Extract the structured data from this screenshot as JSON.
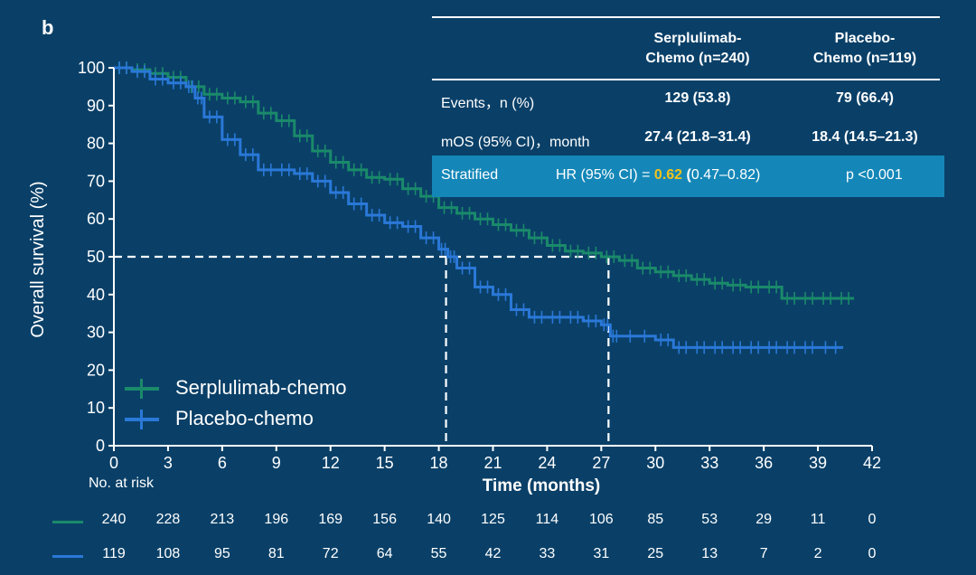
{
  "panel_label": "b",
  "table": {
    "col1_header": "Serplulimab-\nChemo (n=240)",
    "col2_header": "Placebo-\nChemo (n=119)",
    "rows": [
      {
        "label": "Events，n (%)",
        "v1": "129 (53.8)",
        "v2": "79 (66.4)"
      },
      {
        "label": "mOS (95% CI)，month",
        "v1": "27.4 (21.8–31.4)",
        "v2": "18.4 (14.5–21.3)"
      }
    ],
    "stratified": {
      "label": "Stratified",
      "hr_prefix": "HR (95% CI) = ",
      "hr_value": "0.62",
      "hr_open": "(",
      "hr_ci": "0.47–0.82)",
      "p": "p <0.001"
    }
  },
  "risk": {
    "title": "No. at risk",
    "serp": [
      "240",
      "228",
      "213",
      "196",
      "169",
      "156",
      "140",
      "125",
      "114",
      "106",
      "85",
      "53",
      "29",
      "11",
      "0"
    ],
    "placebo": [
      "119",
      "108",
      "95",
      "81",
      "72",
      "64",
      "55",
      "42",
      "33",
      "31",
      "25",
      "13",
      "7",
      "2",
      "0"
    ]
  },
  "colors": {
    "serp": "#1a8a6a",
    "placebo": "#2a78d8",
    "accent": "#f3c21a",
    "band": "#1487b8"
  },
  "chart_data": {
    "type": "line",
    "xlabel": "Time (months)",
    "ylabel": "Overall survival (%)",
    "xlim": [
      0,
      42
    ],
    "ylim": [
      0,
      100
    ],
    "xticks": [
      0,
      3,
      6,
      9,
      12,
      15,
      18,
      21,
      24,
      27,
      30,
      33,
      36,
      39,
      42
    ],
    "yticks": [
      0,
      10,
      20,
      30,
      40,
      50,
      60,
      70,
      80,
      90,
      100
    ],
    "reference_line": {
      "y": 50,
      "x_medians": [
        18.4,
        27.4
      ]
    },
    "series": [
      {
        "name": "Serplulimab-chemo",
        "color": "#1a8a6a",
        "x": [
          0,
          1,
          2,
          3,
          4,
          5,
          6,
          7,
          8,
          9,
          10,
          11,
          12,
          13,
          14,
          15,
          16,
          17,
          18,
          19,
          20,
          21,
          22,
          23,
          24,
          25,
          26,
          27,
          28,
          29,
          30,
          31,
          32,
          33,
          34,
          35,
          36,
          37,
          38,
          39,
          40,
          41
        ],
        "y": [
          100,
          99.5,
          98.5,
          97.5,
          95,
          93,
          92,
          91,
          88,
          86,
          82,
          78,
          75,
          73,
          71,
          70.5,
          68,
          66,
          63,
          61.5,
          60,
          58.5,
          57,
          55,
          53,
          51.5,
          51,
          50,
          49,
          47,
          46,
          45,
          44,
          43,
          42.5,
          42,
          42,
          39,
          39,
          39,
          39,
          39
        ]
      },
      {
        "name": "Placebo-chemo",
        "color": "#2a78d8",
        "x": [
          0,
          1,
          2,
          3,
          4,
          4.5,
          5,
          6,
          7,
          8,
          9,
          10,
          11,
          12,
          13,
          14,
          15,
          16,
          17,
          18,
          18.5,
          19,
          20,
          21,
          22,
          23,
          24,
          25,
          26,
          27,
          27.5,
          28,
          30,
          31,
          32,
          33,
          34,
          35,
          36,
          37,
          38,
          39,
          40.4
        ],
        "y": [
          100,
          99,
          97,
          96,
          95,
          92,
          87,
          81,
          77,
          73,
          73,
          72,
          70,
          67,
          64,
          61,
          59,
          58,
          55,
          52,
          50,
          47,
          42,
          40,
          36,
          34,
          34,
          34,
          33,
          32,
          29,
          29,
          28,
          26,
          26,
          26,
          26,
          26,
          26,
          26,
          26,
          26,
          26
        ]
      }
    ]
  }
}
